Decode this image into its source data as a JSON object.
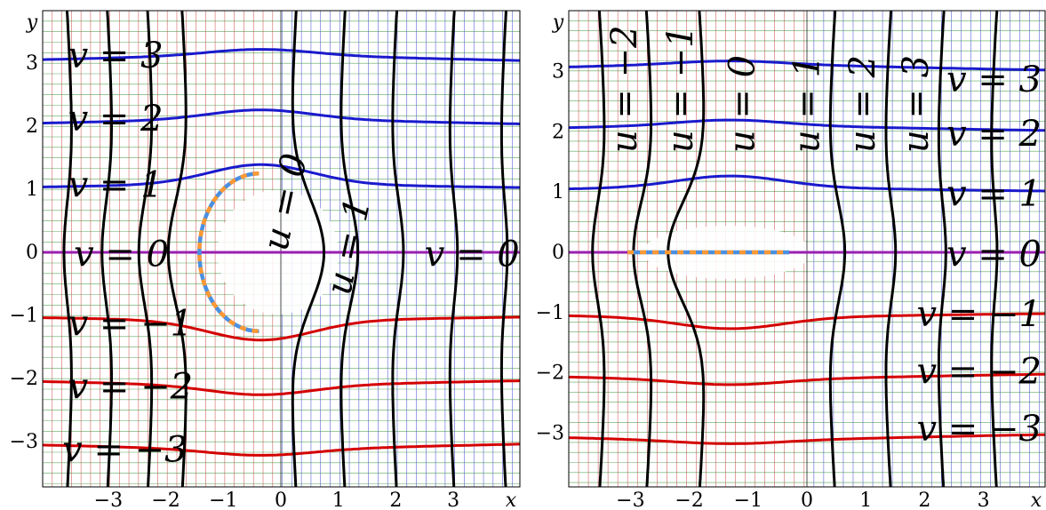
{
  "chart_data": [
    {
      "type": "diagram",
      "panel": "left",
      "x_axis_label": "x",
      "y_axis_label": "y",
      "x_ticks": [
        {
          "value": -3,
          "label": "−3"
        },
        {
          "value": -2,
          "label": "−2"
        },
        {
          "value": -1,
          "label": "−1"
        },
        {
          "value": 0,
          "label": "0"
        },
        {
          "value": 1,
          "label": "1"
        },
        {
          "value": 2,
          "label": "2"
        },
        {
          "value": 3,
          "label": "3"
        }
      ],
      "y_ticks": [
        {
          "value": 3,
          "label": "3"
        },
        {
          "value": 2,
          "label": "2"
        },
        {
          "value": 1,
          "label": "1"
        },
        {
          "value": 0,
          "label": "0"
        },
        {
          "value": -1,
          "label": "−1"
        },
        {
          "value": -2,
          "label": "−2"
        },
        {
          "value": -3,
          "label": "−3"
        }
      ],
      "xlim": [
        -4,
        4
      ],
      "ylim": [
        -4,
        4
      ],
      "v_curves": [
        {
          "v": 3,
          "label": "v = 3",
          "color": "#1a1acc"
        },
        {
          "v": 2,
          "label": "v = 2",
          "color": "#1a1acc"
        },
        {
          "v": 1,
          "label": "v = 1",
          "color": "#1a1acc"
        },
        {
          "v": 0,
          "label": "v = 0",
          "color": "#9a1fb0"
        },
        {
          "v": -1,
          "label": "v = −1",
          "color": "#d40000"
        },
        {
          "v": -2,
          "label": "v = −2",
          "color": "#d40000"
        },
        {
          "v": -3,
          "label": "v = −3",
          "color": "#d40000"
        }
      ],
      "u_curve_labels": [
        "u = 0",
        "u = 1"
      ],
      "v0_right_label": "v = 0",
      "branch_cut": "arc"
    },
    {
      "type": "diagram",
      "panel": "right",
      "x_axis_label": "x",
      "y_axis_label": "y",
      "x_ticks": [
        {
          "value": -3,
          "label": "−3"
        },
        {
          "value": -2,
          "label": "−2"
        },
        {
          "value": -1,
          "label": "−1"
        },
        {
          "value": 0,
          "label": "0"
        },
        {
          "value": 1,
          "label": "1"
        },
        {
          "value": 2,
          "label": "2"
        },
        {
          "value": 3,
          "label": "3"
        }
      ],
      "y_ticks": [
        {
          "value": 3,
          "label": "3"
        },
        {
          "value": 2,
          "label": "2"
        },
        {
          "value": 1,
          "label": "1"
        },
        {
          "value": 0,
          "label": "0"
        },
        {
          "value": -1,
          "label": "−1"
        },
        {
          "value": -2,
          "label": "−2"
        },
        {
          "value": -3,
          "label": "−3"
        }
      ],
      "xlim": [
        -4,
        4
      ],
      "ylim": [
        -4,
        4
      ],
      "v_curves": [
        {
          "v": 3,
          "label": "v = 3",
          "color": "#1a1acc"
        },
        {
          "v": 2,
          "label": "v = 2",
          "color": "#1a1acc"
        },
        {
          "v": 1,
          "label": "v = 1",
          "color": "#1a1acc"
        },
        {
          "v": 0,
          "label": "v = 0",
          "color": "#9a1fb0"
        },
        {
          "v": -1,
          "label": "v = −1",
          "color": "#d40000"
        },
        {
          "v": -2,
          "label": "v = −2",
          "color": "#d40000"
        },
        {
          "v": -3,
          "label": "v = −3",
          "color": "#d40000"
        }
      ],
      "u_curve_labels": [
        "u = −2",
        "u = −1",
        "u = 0",
        "u = 1",
        "u = 2",
        "u = 3"
      ],
      "branch_cut": "segment"
    }
  ]
}
